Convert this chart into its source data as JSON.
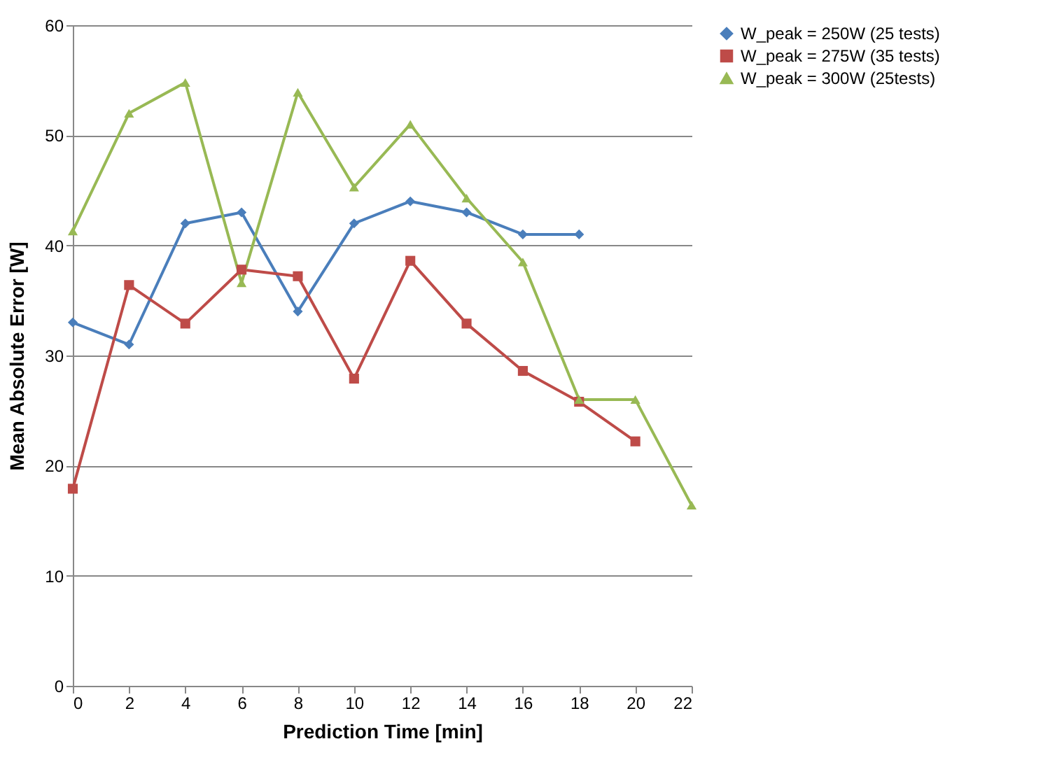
{
  "chart_data": {
    "type": "line",
    "xlabel": "Prediction Time [min]",
    "ylabel": "Mean Absolute Error [W]",
    "x": [
      0,
      2,
      4,
      6,
      8,
      10,
      12,
      14,
      16,
      18,
      20,
      22
    ],
    "series": [
      {
        "name": "W_peak = 250W (25 tests)",
        "color": "#4a7ebb",
        "marker": "diamond",
        "values": [
          33,
          31,
          42,
          43,
          34,
          42,
          44,
          43,
          41,
          41,
          null,
          null
        ]
      },
      {
        "name": "W_peak = 275W (35 tests)",
        "color": "#be4b48",
        "marker": "square",
        "values": [
          17.9,
          36.4,
          32.9,
          37.8,
          37.2,
          27.9,
          38.6,
          32.9,
          28.6,
          25.8,
          22.2,
          null
        ]
      },
      {
        "name": "W_peak = 300W (25tests)",
        "color": "#98b954",
        "marker": "triangle",
        "values": [
          41.3,
          52,
          54.8,
          36.6,
          53.9,
          45.3,
          51,
          44.3,
          38.5,
          26,
          26,
          16.4
        ]
      }
    ],
    "xlim": [
      0,
      22
    ],
    "xticks": [
      0,
      2,
      4,
      6,
      8,
      10,
      12,
      14,
      16,
      18,
      20,
      22
    ],
    "ylim": [
      0,
      60
    ],
    "yticks": [
      0,
      10,
      20,
      30,
      40,
      50,
      60
    ],
    "grid": "y",
    "legend": "right",
    "line_style": "solid"
  }
}
